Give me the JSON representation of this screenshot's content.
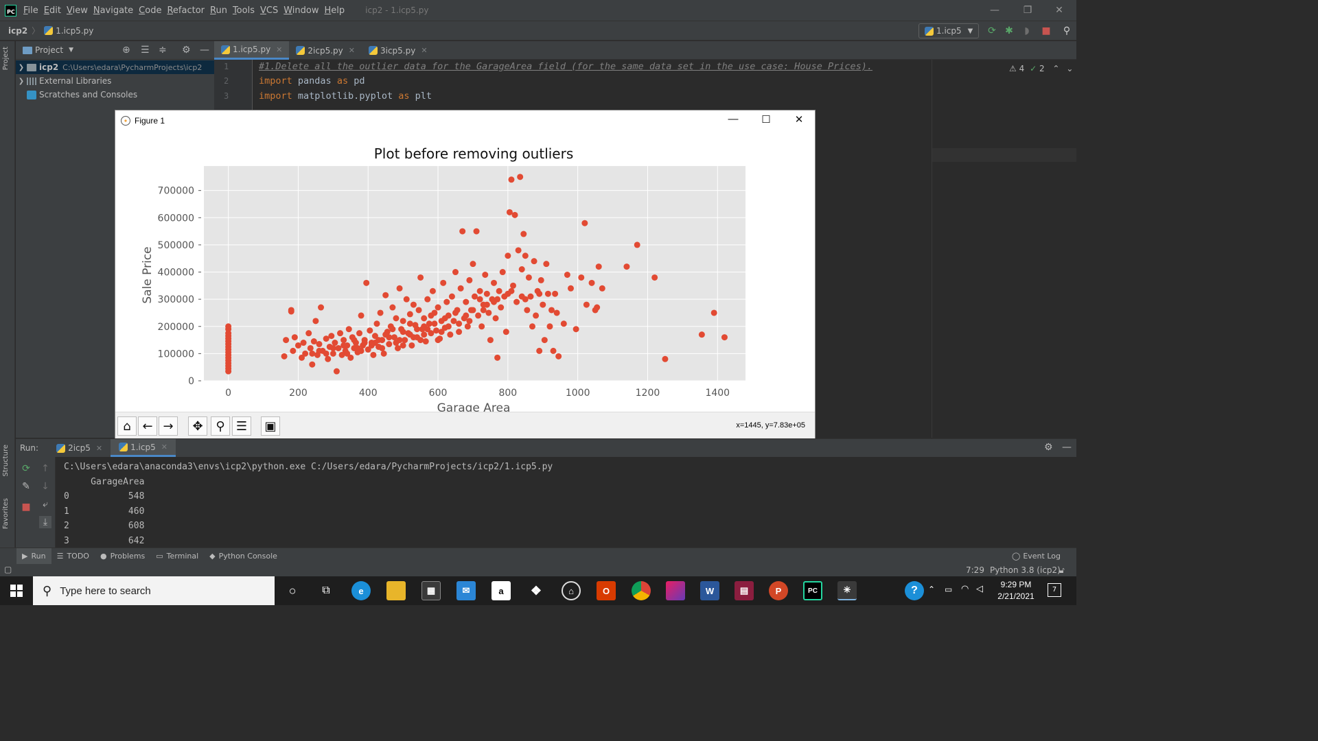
{
  "window": {
    "title": "icp2 - 1.icp5.py",
    "menus": [
      "File",
      "Edit",
      "View",
      "Navigate",
      "Code",
      "Refactor",
      "Run",
      "Tools",
      "VCS",
      "Window",
      "Help"
    ],
    "minimize": "—",
    "restore": "❐",
    "close": "✕"
  },
  "navbar": {
    "project": "icp2",
    "file": "1.icp5.py",
    "run_config": "1.icp5"
  },
  "sidebar_tabs": {
    "project": "Project",
    "structure": "Structure",
    "favorites": "Favorites"
  },
  "project_panel": {
    "header": "Project",
    "tree": [
      {
        "label": "icp2",
        "path": "C:\\Users\\edara\\PycharmProjects\\icp2"
      },
      {
        "label": "External Libraries"
      },
      {
        "label": "Scratches and Consoles"
      }
    ]
  },
  "editor": {
    "tabs": [
      {
        "label": "1.icp5.py",
        "active": true
      },
      {
        "label": "2icp5.py",
        "active": false
      },
      {
        "label": "3icp5.py",
        "active": false
      }
    ],
    "line_numbers": [
      "1",
      "2",
      "3"
    ],
    "line1": "#1.Delete all the outlier data for the GarageArea field (for the same data set in the use case: House Prices).",
    "line2_kw1": "import",
    "line2_mod": " pandas ",
    "line2_kw2": "as",
    "line2_alias": " pd",
    "line3_kw1": "import",
    "line3_mod": " matplotlib.pyplot ",
    "line3_kw2": "as",
    "line3_alias": " plt",
    "warnings": "4",
    "weak_warnings": "2"
  },
  "figure": {
    "window_title": "Figure 1",
    "coords": "x=1445, y=7.83e+05"
  },
  "chart_data": {
    "type": "scatter",
    "title": "Plot before removing outliers",
    "xlabel": "Garage Area",
    "ylabel": "Sale Price",
    "xlim": [
      -70,
      1480
    ],
    "ylim": [
      0,
      790000
    ],
    "xticks": [
      0,
      200,
      400,
      600,
      800,
      1000,
      1200,
      1400
    ],
    "yticks": [
      0,
      100000,
      200000,
      300000,
      400000,
      500000,
      600000,
      700000
    ],
    "grid": true,
    "marker_color": "#e24a33",
    "background": "#e5e5e5",
    "points": [
      [
        0,
        35000
      ],
      [
        0,
        45000
      ],
      [
        0,
        55000
      ],
      [
        0,
        65000
      ],
      [
        0,
        75000
      ],
      [
        0,
        85000
      ],
      [
        0,
        95000
      ],
      [
        0,
        105000
      ],
      [
        0,
        115000
      ],
      [
        0,
        125000
      ],
      [
        0,
        135000
      ],
      [
        0,
        145000
      ],
      [
        0,
        155000
      ],
      [
        0,
        165000
      ],
      [
        0,
        175000
      ],
      [
        0,
        190000
      ],
      [
        0,
        200000
      ],
      [
        160,
        90000
      ],
      [
        165,
        150000
      ],
      [
        180,
        255000
      ],
      [
        180,
        260000
      ],
      [
        185,
        110000
      ],
      [
        190,
        160000
      ],
      [
        200,
        130000
      ],
      [
        210,
        85000
      ],
      [
        215,
        140000
      ],
      [
        220,
        100000
      ],
      [
        230,
        175000
      ],
      [
        235,
        120000
      ],
      [
        240,
        60000
      ],
      [
        245,
        145000
      ],
      [
        250,
        220000
      ],
      [
        255,
        95000
      ],
      [
        260,
        135000
      ],
      [
        265,
        270000
      ],
      [
        270,
        110000
      ],
      [
        280,
        155000
      ],
      [
        285,
        80000
      ],
      [
        290,
        125000
      ],
      [
        295,
        165000
      ],
      [
        300,
        100000
      ],
      [
        305,
        140000
      ],
      [
        310,
        35000
      ],
      [
        315,
        120000
      ],
      [
        320,
        175000
      ],
      [
        325,
        95000
      ],
      [
        330,
        150000
      ],
      [
        335,
        110000
      ],
      [
        340,
        130000
      ],
      [
        345,
        190000
      ],
      [
        350,
        85000
      ],
      [
        355,
        160000
      ],
      [
        360,
        120000
      ],
      [
        365,
        140000
      ],
      [
        370,
        105000
      ],
      [
        375,
        175000
      ],
      [
        380,
        240000
      ],
      [
        385,
        130000
      ],
      [
        390,
        150000
      ],
      [
        395,
        360000
      ],
      [
        400,
        115000
      ],
      [
        405,
        185000
      ],
      [
        410,
        140000
      ],
      [
        415,
        95000
      ],
      [
        420,
        165000
      ],
      [
        425,
        210000
      ],
      [
        430,
        125000
      ],
      [
        435,
        250000
      ],
      [
        440,
        150000
      ],
      [
        445,
        100000
      ],
      [
        450,
        315000
      ],
      [
        455,
        180000
      ],
      [
        460,
        135000
      ],
      [
        465,
        200000
      ],
      [
        470,
        270000
      ],
      [
        475,
        160000
      ],
      [
        480,
        230000
      ],
      [
        485,
        120000
      ],
      [
        490,
        340000
      ],
      [
        495,
        190000
      ],
      [
        500,
        220000
      ],
      [
        505,
        150000
      ],
      [
        510,
        300000
      ],
      [
        515,
        175000
      ],
      [
        520,
        245000
      ],
      [
        525,
        130000
      ],
      [
        530,
        280000
      ],
      [
        535,
        205000
      ],
      [
        540,
        160000
      ],
      [
        545,
        260000
      ],
      [
        550,
        380000
      ],
      [
        555,
        190000
      ],
      [
        560,
        230000
      ],
      [
        565,
        145000
      ],
      [
        570,
        300000
      ],
      [
        575,
        210000
      ],
      [
        580,
        175000
      ],
      [
        585,
        330000
      ],
      [
        590,
        250000
      ],
      [
        595,
        185000
      ],
      [
        600,
        270000
      ],
      [
        605,
        155000
      ],
      [
        610,
        220000
      ],
      [
        615,
        360000
      ],
      [
        620,
        195000
      ],
      [
        625,
        290000
      ],
      [
        630,
        240000
      ],
      [
        635,
        170000
      ],
      [
        640,
        310000
      ],
      [
        645,
        220000
      ],
      [
        650,
        400000
      ],
      [
        655,
        260000
      ],
      [
        660,
        180000
      ],
      [
        665,
        340000
      ],
      [
        670,
        550000
      ],
      [
        675,
        230000
      ],
      [
        680,
        290000
      ],
      [
        685,
        200000
      ],
      [
        690,
        370000
      ],
      [
        695,
        260000
      ],
      [
        700,
        430000
      ],
      [
        705,
        310000
      ],
      [
        710,
        550000
      ],
      [
        715,
        240000
      ],
      [
        720,
        330000
      ],
      [
        725,
        200000
      ],
      [
        730,
        280000
      ],
      [
        735,
        390000
      ],
      [
        740,
        320000
      ],
      [
        745,
        250000
      ],
      [
        750,
        150000
      ],
      [
        755,
        300000
      ],
      [
        760,
        360000
      ],
      [
        765,
        230000
      ],
      [
        770,
        85000
      ],
      [
        775,
        330000
      ],
      [
        780,
        270000
      ],
      [
        785,
        400000
      ],
      [
        790,
        310000
      ],
      [
        795,
        180000
      ],
      [
        800,
        460000
      ],
      [
        805,
        620000
      ],
      [
        810,
        740000
      ],
      [
        815,
        350000
      ],
      [
        820,
        610000
      ],
      [
        825,
        290000
      ],
      [
        830,
        480000
      ],
      [
        835,
        750000
      ],
      [
        840,
        410000
      ],
      [
        845,
        540000
      ],
      [
        850,
        460000
      ],
      [
        855,
        260000
      ],
      [
        860,
        380000
      ],
      [
        865,
        310000
      ],
      [
        870,
        200000
      ],
      [
        875,
        440000
      ],
      [
        880,
        240000
      ],
      [
        885,
        330000
      ],
      [
        890,
        110000
      ],
      [
        895,
        370000
      ],
      [
        900,
        280000
      ],
      [
        905,
        150000
      ],
      [
        910,
        430000
      ],
      [
        915,
        320000
      ],
      [
        920,
        200000
      ],
      [
        925,
        260000
      ],
      [
        930,
        110000
      ],
      [
        935,
        320000
      ],
      [
        940,
        250000
      ],
      [
        945,
        90000
      ],
      [
        960,
        210000
      ],
      [
        970,
        390000
      ],
      [
        980,
        340000
      ],
      [
        995,
        190000
      ],
      [
        1010,
        380000
      ],
      [
        1020,
        580000
      ],
      [
        1025,
        280000
      ],
      [
        1040,
        360000
      ],
      [
        1050,
        260000
      ],
      [
        1055,
        270000
      ],
      [
        1060,
        420000
      ],
      [
        1070,
        340000
      ],
      [
        1140,
        420000
      ],
      [
        1170,
        500000
      ],
      [
        1220,
        380000
      ],
      [
        1250,
        80000
      ],
      [
        1355,
        170000
      ],
      [
        1390,
        250000
      ],
      [
        1420,
        160000
      ],
      [
        470,
        190000
      ],
      [
        520,
        170000
      ],
      [
        560,
        200000
      ],
      [
        600,
        150000
      ],
      [
        480,
        140000
      ],
      [
        440,
        120000
      ],
      [
        380,
        110000
      ],
      [
        340,
        100000
      ],
      [
        520,
        210000
      ],
      [
        580,
        240000
      ],
      [
        620,
        230000
      ],
      [
        660,
        210000
      ],
      [
        700,
        260000
      ],
      [
        740,
        280000
      ],
      [
        560,
        170000
      ],
      [
        500,
        130000
      ],
      [
        460,
        160000
      ],
      [
        420,
        140000
      ],
      [
        360,
        150000
      ],
      [
        300,
        120000
      ],
      [
        260,
        110000
      ],
      [
        240,
        100000
      ],
      [
        540,
        190000
      ],
      [
        590,
        210000
      ],
      [
        630,
        200000
      ],
      [
        680,
        240000
      ],
      [
        720,
        300000
      ],
      [
        760,
        290000
      ],
      [
        800,
        320000
      ],
      [
        840,
        310000
      ],
      [
        500,
        180000
      ],
      [
        450,
        170000
      ],
      [
        410,
        130000
      ],
      [
        370,
        120000
      ],
      [
        330,
        130000
      ],
      [
        280,
        100000
      ],
      [
        550,
        150000
      ],
      [
        610,
        180000
      ],
      [
        650,
        250000
      ],
      [
        690,
        220000
      ],
      [
        730,
        260000
      ],
      [
        770,
        300000
      ],
      [
        810,
        330000
      ],
      [
        850,
        300000
      ],
      [
        890,
        320000
      ],
      [
        570,
        190000
      ],
      [
        530,
        160000
      ],
      [
        490,
        150000
      ],
      [
        430,
        150000
      ],
      [
        390,
        140000
      ]
    ]
  },
  "figure_toolbar": {
    "home": "home-icon",
    "back": "back-arrow-icon",
    "forward": "forward-arrow-icon",
    "pan": "pan-icon",
    "zoom": "zoom-icon",
    "configure": "configure-subplots-icon",
    "save": "save-icon"
  },
  "run_panel": {
    "label": "Run:",
    "tabs": [
      {
        "label": "2icp5",
        "active": false
      },
      {
        "label": "1.icp5",
        "active": true
      }
    ],
    "console": [
      "C:\\Users\\edara\\anaconda3\\envs\\icp2\\python.exe C:/Users/edara/PycharmProjects/icp2/1.icp5.py",
      "     GarageArea",
      "0           548",
      "1           460",
      "2           608",
      "3           642"
    ]
  },
  "tool_stripe": {
    "items": [
      "Run",
      "TODO",
      "Problems",
      "Terminal",
      "Python Console"
    ],
    "event_log": "Event Log"
  },
  "statusbar": {
    "position": "7:29",
    "interpreter": "Python 3.8 (icp2)"
  },
  "taskbar": {
    "search_placeholder": "Type here to search",
    "time": "9:29 PM",
    "date": "2/21/2021",
    "notifications": "7"
  }
}
